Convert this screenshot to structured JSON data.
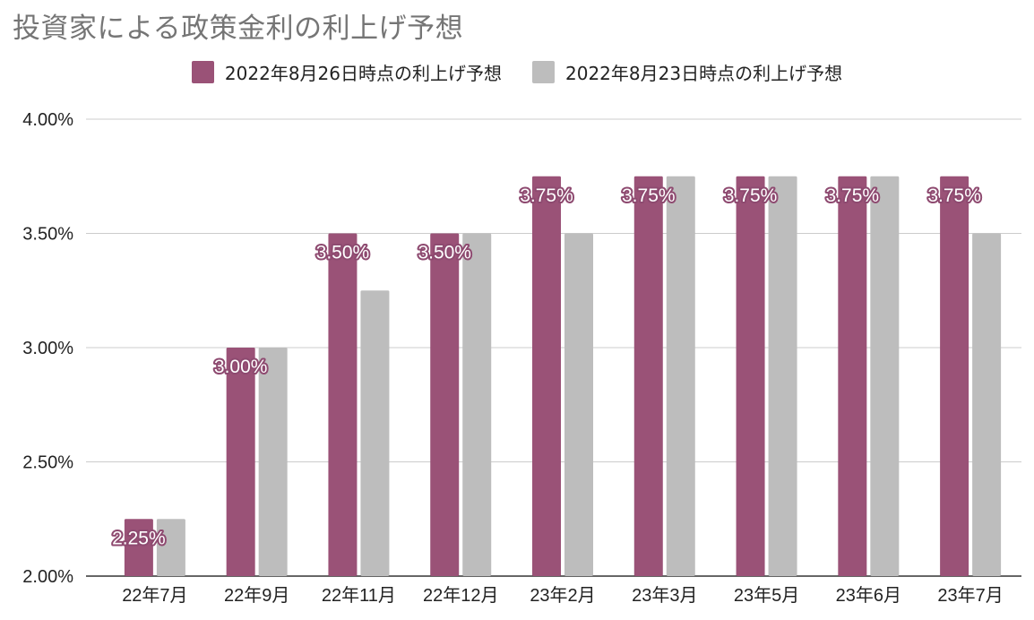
{
  "chart_data": {
    "type": "bar",
    "title": "投資家による政策金利の利上げ予想",
    "xlabel": "",
    "ylabel": "",
    "categories": [
      "22年7月",
      "22年9月",
      "22年11月",
      "22年12月",
      "23年2月",
      "23年3月",
      "23年5月",
      "23年6月",
      "23年7月"
    ],
    "series": [
      {
        "name": "2022年8月26日時点の利上げ予想",
        "color": "#9a5277",
        "values": [
          2.25,
          3.0,
          3.5,
          3.5,
          3.75,
          3.75,
          3.75,
          3.75,
          3.75
        ],
        "data_labels": [
          "2.25%",
          "3.00%",
          "3.50%",
          "3.50%",
          "3.75%",
          "3.75%",
          "3.75%",
          "3.75%",
          "3.75%"
        ]
      },
      {
        "name": "2022年8月23日時点の利上げ予想",
        "color": "#bdbdbd",
        "values": [
          2.25,
          3.0,
          3.25,
          3.5,
          3.5,
          3.75,
          3.75,
          3.75,
          3.5
        ]
      }
    ],
    "ylim": [
      2.0,
      4.0
    ],
    "yticks": [
      2.0,
      2.5,
      3.0,
      3.5,
      4.0
    ],
    "ytick_labels": [
      "2.00%",
      "2.50%",
      "3.00%",
      "3.50%",
      "4.00%"
    ],
    "legend_position": "top-center",
    "grid": true,
    "gridline_color": "#cccccc"
  }
}
